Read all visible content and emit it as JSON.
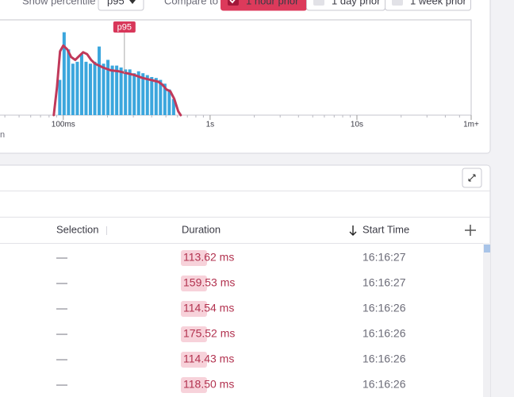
{
  "controls": {
    "percentile_label": "Show percentile",
    "percentile": "p95",
    "compare_label": "Compare to",
    "compare_options": [
      {
        "label": "1 hour prior",
        "checked": true
      },
      {
        "label": "1 day prior",
        "checked": false
      },
      {
        "label": "1 week prior",
        "checked": false
      }
    ]
  },
  "histogram": {
    "type": "histogram",
    "log_x": true,
    "color": "#3ba6dd",
    "xlim": [
      0.03,
      60
    ],
    "xticks": [
      {
        "value": 0.1,
        "label": "100ms"
      },
      {
        "value": 1,
        "label": "1s"
      },
      {
        "value": 10,
        "label": "10s"
      },
      {
        "value": 60,
        "label": "1m+"
      }
    ],
    "minor_xticks": [
      0.04,
      0.05,
      0.06,
      0.07,
      0.08,
      0.09,
      0.2,
      0.3,
      0.4,
      0.5,
      0.6,
      0.7,
      0.8,
      0.9,
      2,
      3,
      4,
      5,
      6,
      7,
      8,
      9,
      20,
      30,
      40,
      50
    ],
    "ylim": [
      0,
      100
    ],
    "bins": [
      0.0917,
      0.0982,
      0.1052,
      0.1127,
      0.1207,
      0.1293,
      0.1385,
      0.1483,
      0.1589,
      0.1702,
      0.1823,
      0.1952,
      0.2091,
      0.224,
      0.2399,
      0.257,
      0.2752,
      0.2948,
      0.3158,
      0.3382,
      0.3623,
      0.388,
      0.4156,
      0.4452,
      0.4768,
      0.5107,
      0.547,
      0.5859
    ],
    "counts": [
      37,
      87,
      69,
      54,
      56,
      64,
      56,
      54,
      56,
      72,
      54,
      58,
      52,
      52,
      50,
      48,
      48,
      44,
      46,
      44,
      42,
      40,
      39,
      37,
      33,
      27,
      17
    ],
    "curve": {
      "color": "#c0395a",
      "x": [
        0.0861,
        0.0905,
        0.0951,
        0.1,
        0.1064,
        0.1132,
        0.1205,
        0.1283,
        0.1365,
        0.1453,
        0.1546,
        0.1646,
        0.1863,
        0.211,
        0.2389,
        0.2705,
        0.3063,
        0.3468,
        0.3927,
        0.4446,
        0.4731,
        0.5034,
        0.5357,
        0.57,
        0.6065,
        0.6307
      ],
      "y": [
        0,
        29,
        67,
        73,
        69,
        61,
        58,
        62,
        66,
        64,
        58,
        54,
        50,
        47,
        46,
        44,
        42,
        39,
        37,
        35,
        32,
        27,
        25,
        17,
        4,
        0
      ]
    },
    "marker": {
      "label": "p95",
      "value": 0.2608,
      "color": "#d8375a"
    },
    "axis_caption": "n"
  },
  "table": {
    "columns": [
      "Selection",
      "Duration",
      "Start Time"
    ],
    "sort_column": 2,
    "rows": [
      [
        "—",
        "113.62 ms",
        "16:16:27"
      ],
      [
        "—",
        "159.53 ms",
        "16:16:27"
      ],
      [
        "—",
        "114.54 ms",
        "16:16:26"
      ],
      [
        "—",
        "175.52 ms",
        "16:16:26"
      ],
      [
        "—",
        "114.43 ms",
        "16:16:26"
      ],
      [
        "—",
        "118.50 ms",
        "16:16:26"
      ]
    ]
  }
}
